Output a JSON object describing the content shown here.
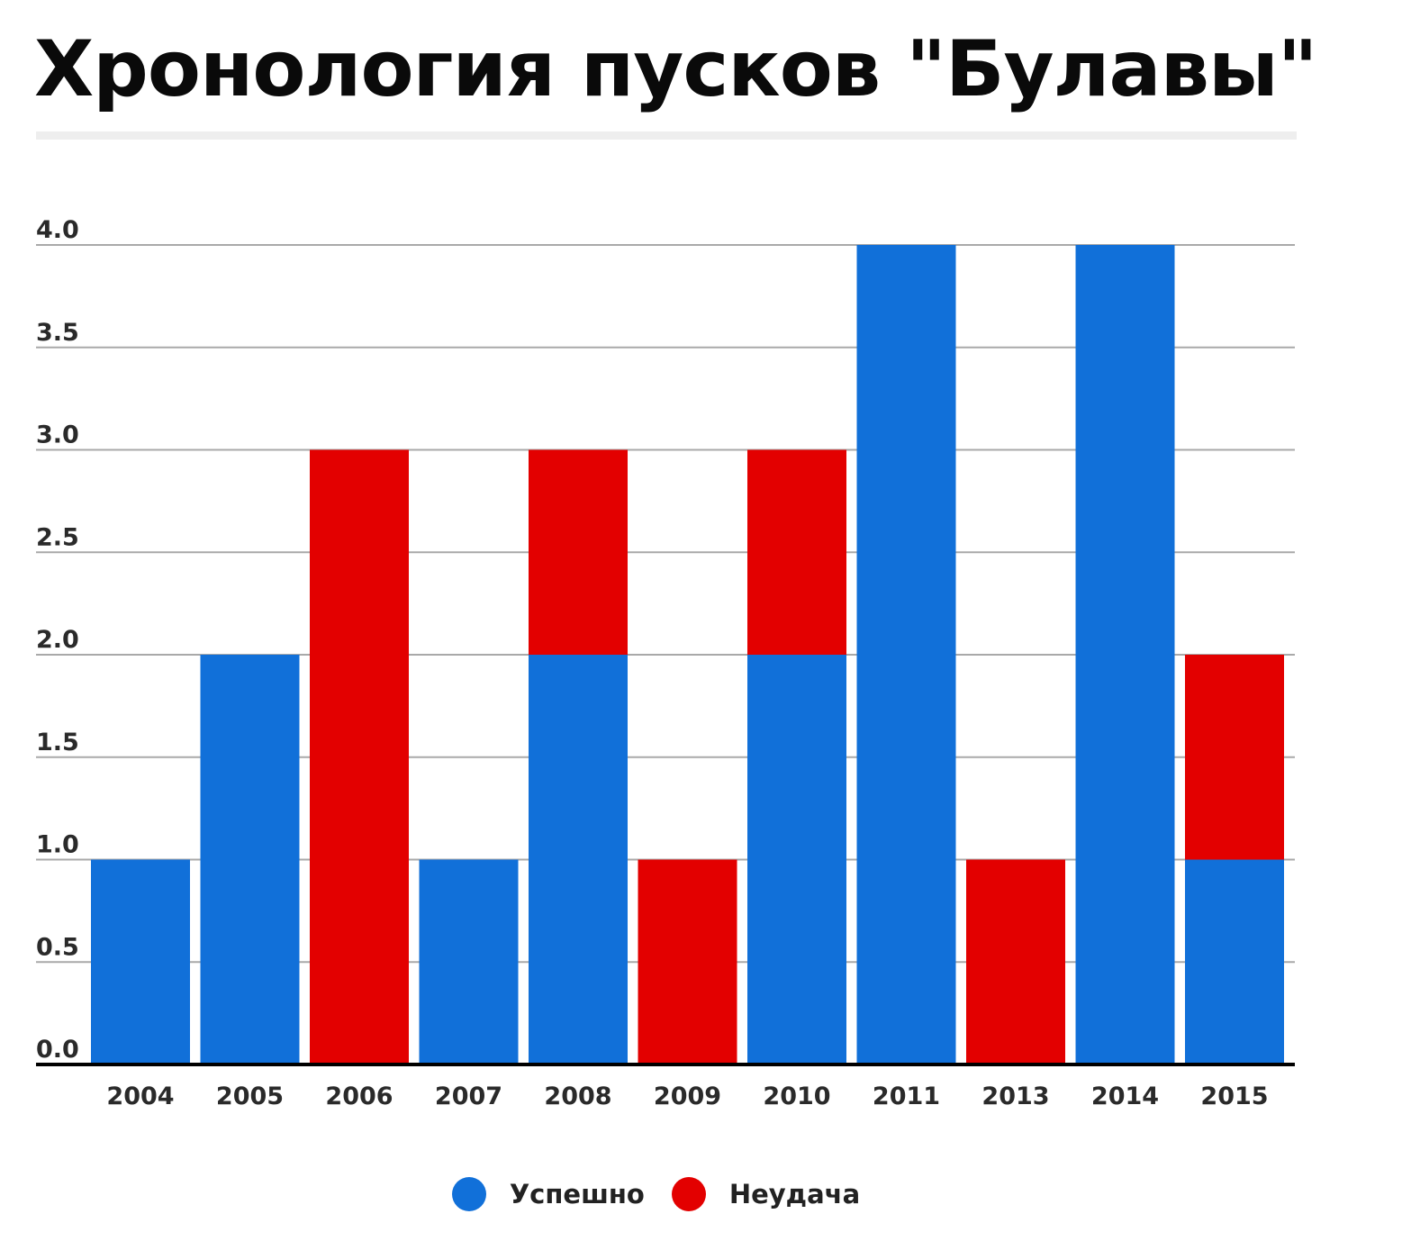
{
  "chart_data": {
    "type": "bar",
    "stacked": true,
    "title": "Хронология пусков \"Булавы\"",
    "xlabel": "",
    "ylabel": "",
    "categories": [
      "2004",
      "2005",
      "2006",
      "2007",
      "2008",
      "2009",
      "2010",
      "2011",
      "2013",
      "2014",
      "2015"
    ],
    "series": [
      {
        "name": "Успешно",
        "color": "#1170d9",
        "values": [
          1,
          2,
          0,
          1,
          2,
          0,
          2,
          4,
          0,
          4,
          1
        ]
      },
      {
        "name": "Неудача",
        "color": "#e30000",
        "values": [
          0,
          0,
          3,
          0,
          1,
          1,
          1,
          0,
          1,
          0,
          1
        ]
      }
    ],
    "ylim": [
      0,
      4
    ],
    "yticks": [
      "0.0",
      "0.5",
      "1.0",
      "1.5",
      "2.0",
      "2.5",
      "3.0",
      "3.5",
      "4.0"
    ],
    "grid": true,
    "legend_position": "bottom"
  }
}
